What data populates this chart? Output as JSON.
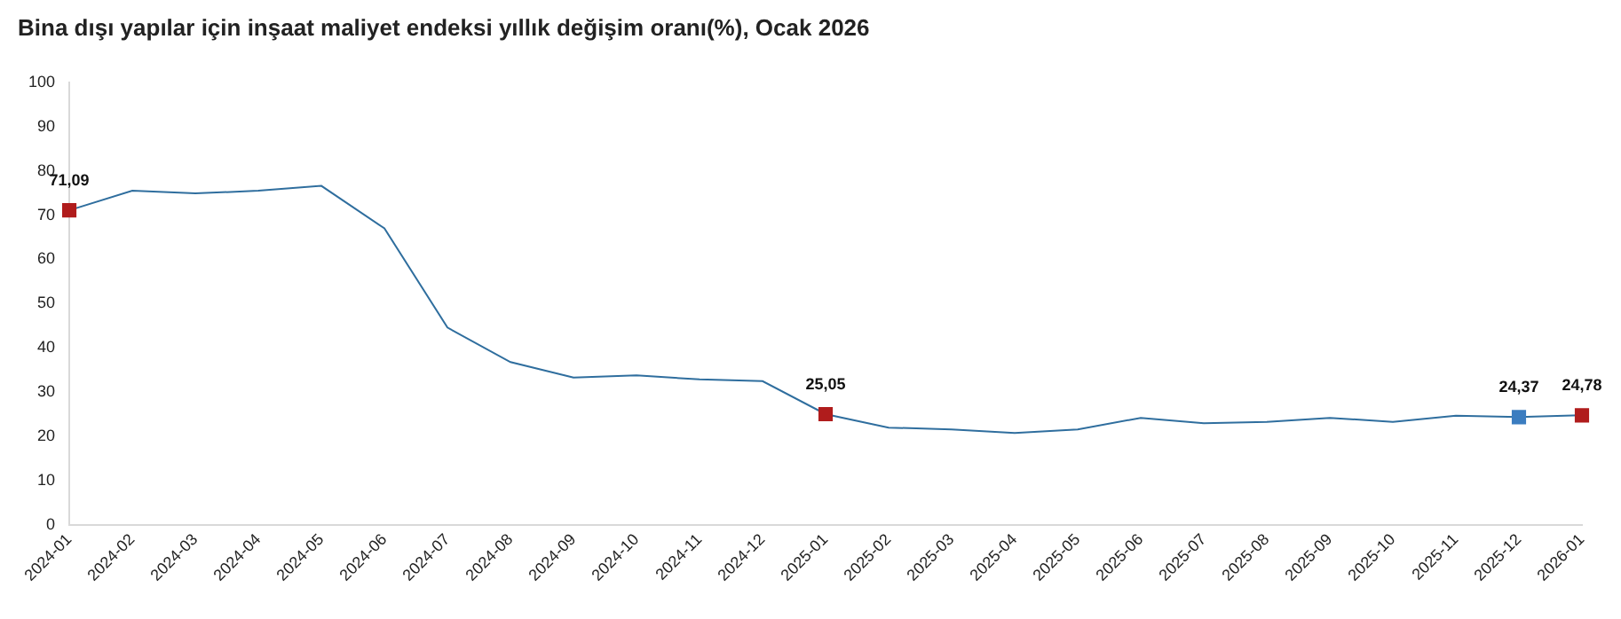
{
  "chart_data": {
    "type": "line",
    "title": "Bina dışı yapılar için inşaat maliyet endeksi yıllık değişim oranı(%), Ocak 2026",
    "categories": [
      "2024-01",
      "2024-02",
      "2024-03",
      "2024-04",
      "2024-05",
      "2024-06",
      "2024-07",
      "2024-08",
      "2024-09",
      "2024-10",
      "2024-11",
      "2024-12",
      "2025-01",
      "2025-02",
      "2025-03",
      "2025-04",
      "2025-05",
      "2025-06",
      "2025-07",
      "2025-08",
      "2025-09",
      "2025-10",
      "2025-11",
      "2025-12",
      "2026-01"
    ],
    "series": [
      {
        "color": "#2f6e9e",
        "marker": "none",
        "values": [
          71.09,
          75.5,
          74.9,
          75.5,
          76.6,
          67,
          44.6,
          36.8,
          33.3,
          33.8,
          32.9,
          32.5,
          25.05,
          22,
          21.6,
          20.8,
          21.6,
          24.2,
          23,
          23.3,
          24.2,
          23.3,
          24.7,
          24.37,
          24.78
        ]
      },
      {
        "type": "scatter",
        "marker": "square",
        "values": [
          71.09,
          null,
          null,
          null,
          null,
          null,
          null,
          null,
          null,
          null,
          null,
          null,
          25.05,
          null,
          null,
          null,
          null,
          null,
          null,
          null,
          null,
          null,
          null,
          24.37,
          24.78
        ],
        "colors": [
          "#b01c1c",
          null,
          null,
          null,
          null,
          null,
          null,
          null,
          null,
          null,
          null,
          null,
          "#b01c1c",
          null,
          null,
          null,
          null,
          null,
          null,
          null,
          null,
          null,
          null,
          "#3b7dc0",
          "#b01c1c"
        ],
        "value_labels": [
          "71,09",
          null,
          null,
          null,
          null,
          null,
          null,
          null,
          null,
          null,
          null,
          null,
          "25,05",
          null,
          null,
          null,
          null,
          null,
          null,
          null,
          null,
          null,
          null,
          "24,37",
          "24,78"
        ]
      }
    ],
    "ylim": [
      0,
      100
    ],
    "yticks": [
      0,
      10,
      20,
      30,
      40,
      50,
      60,
      70,
      80,
      90,
      100
    ],
    "grid": false,
    "legend": false
  }
}
